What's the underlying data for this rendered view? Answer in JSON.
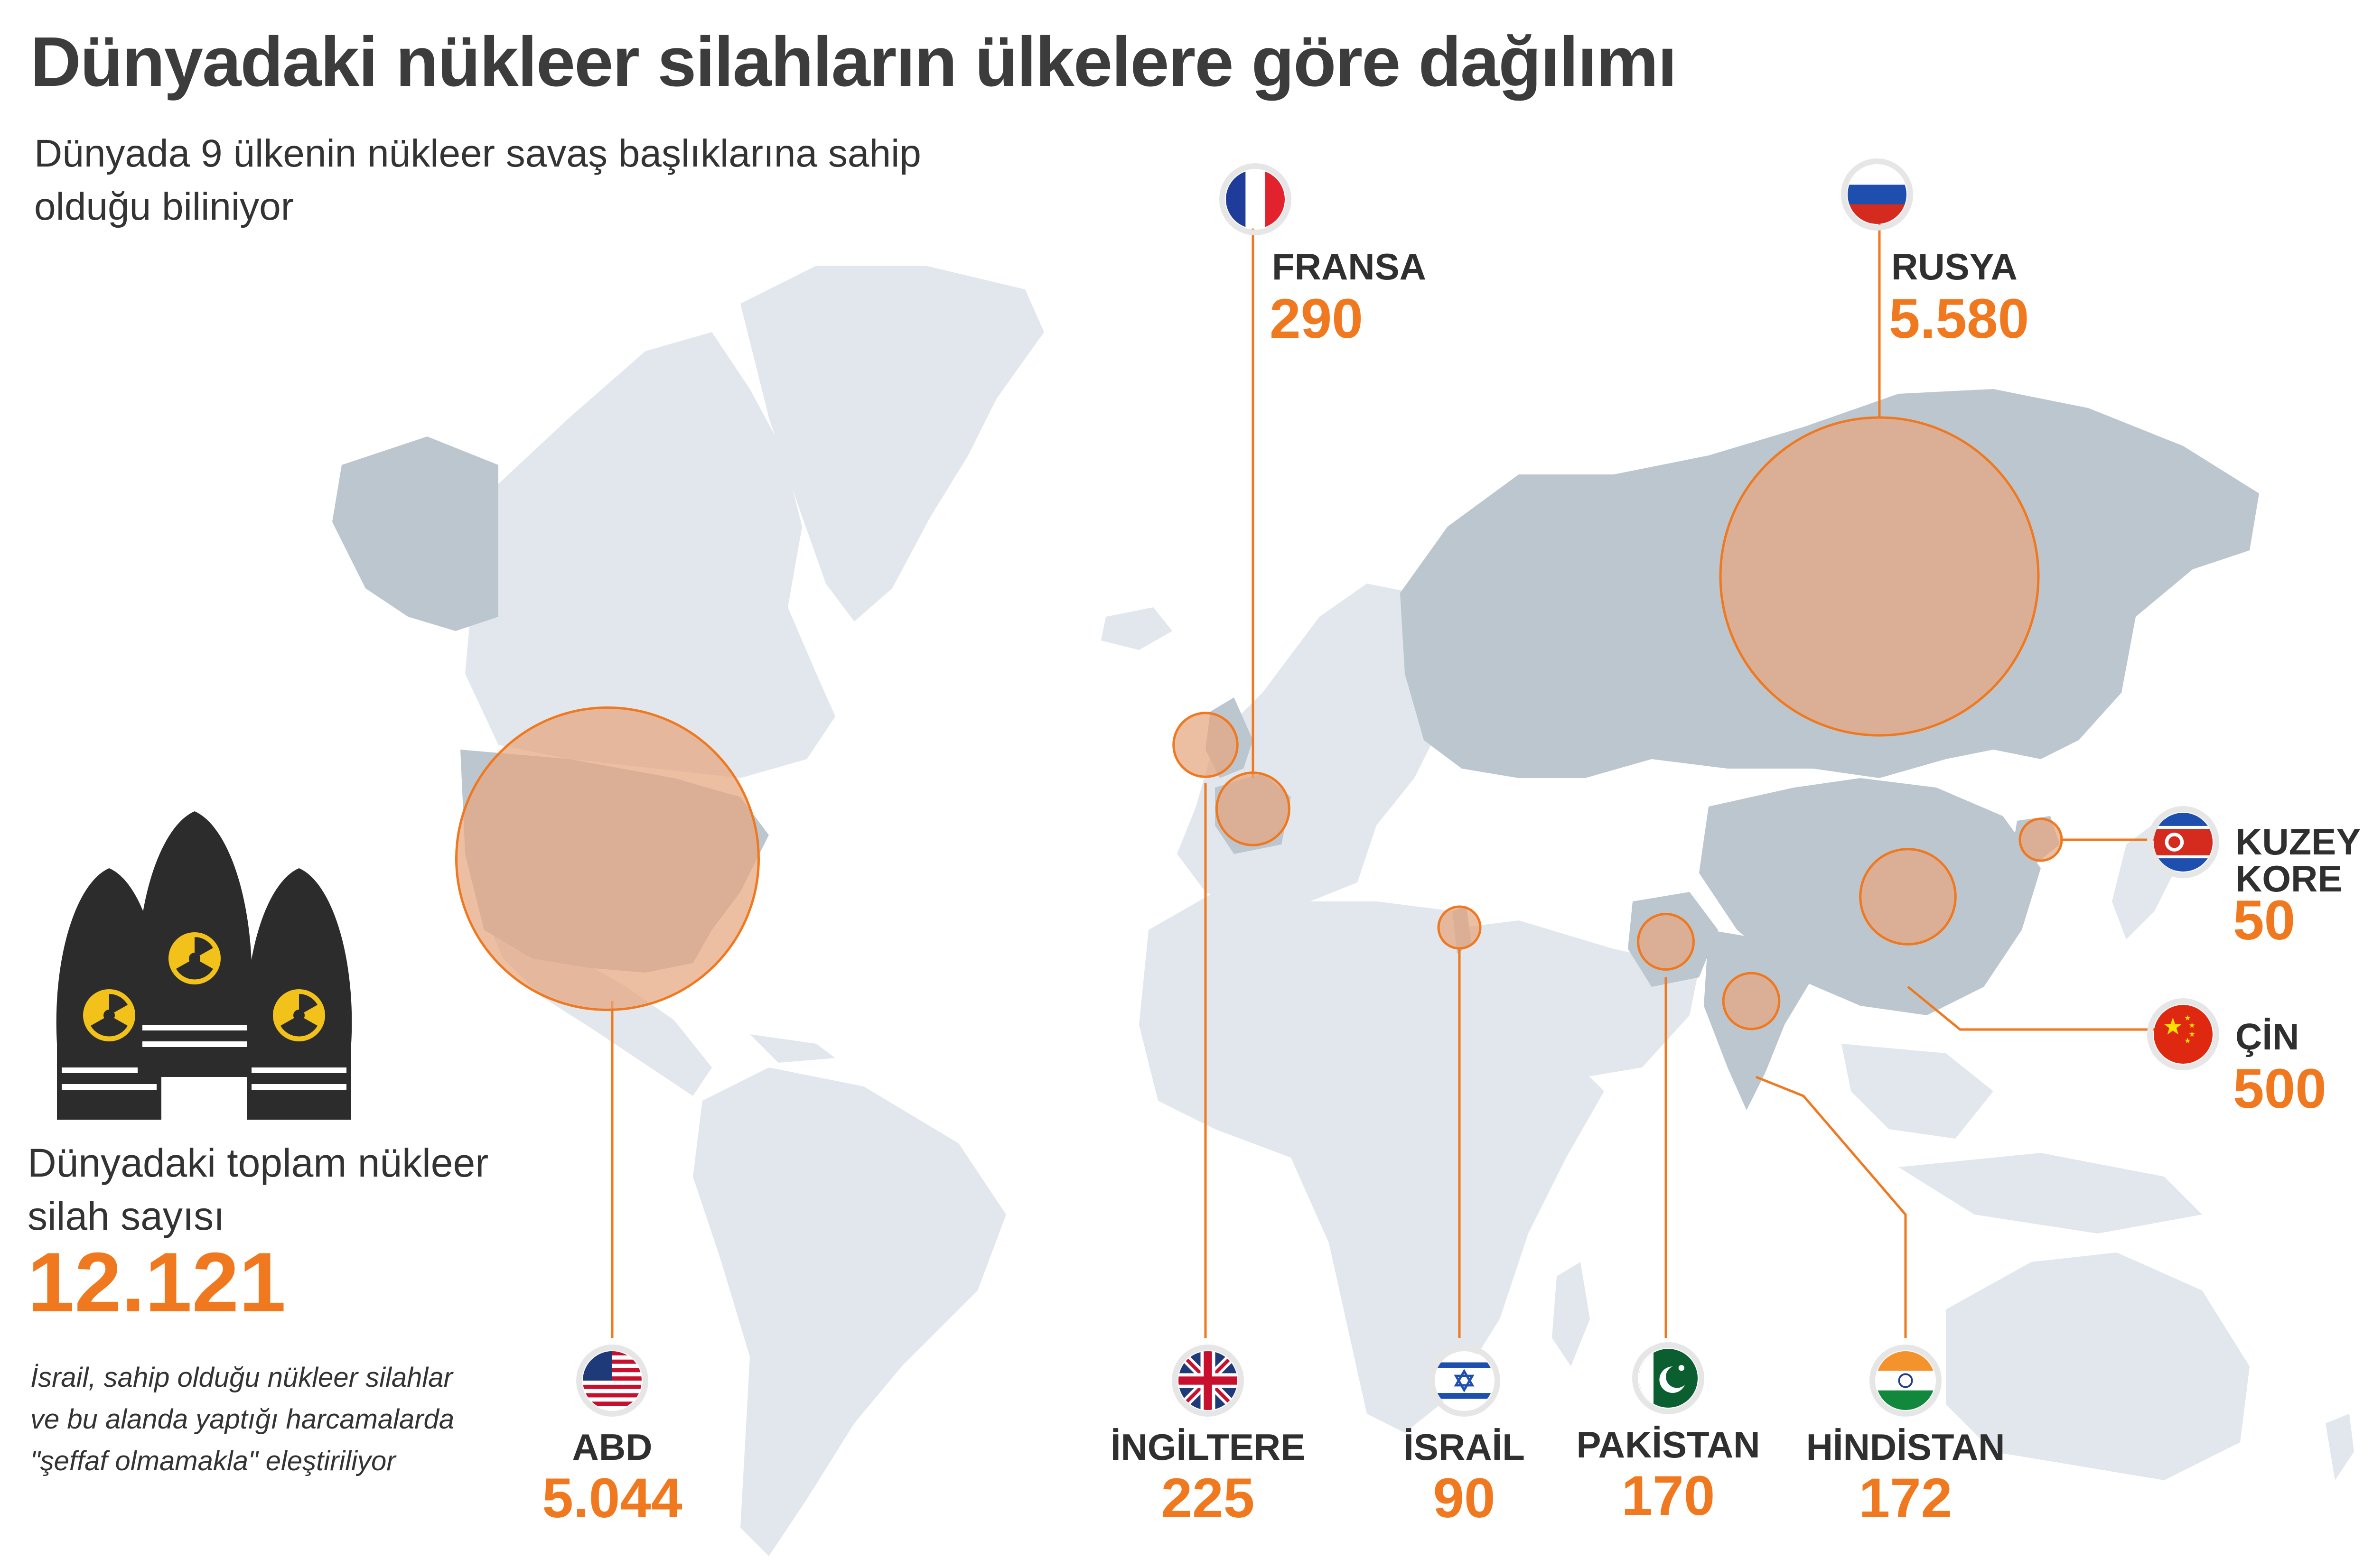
{
  "title": "Dünyadaki nükleer silahların ülkelere göre dağılımı",
  "subtitle": "Dünyada 9 ülkenin nükleer savaş başlıklarına sahip olduğu biliniyor",
  "total": {
    "label": "Dünyadaki toplam nükleer silah sayısı",
    "value": "12.121"
  },
  "note": "İsrail, sahip olduğu nükleer silahlar ve bu alanda yaptığı harcamalarda \"şeffaf olmamakla\" eleştiriliyor",
  "colors": {
    "accent": "#f0781e",
    "bubble": "#e6a67e",
    "map_light": "#e1e7ec",
    "map_dark": "#bcc6cf"
  },
  "countries": [
    {
      "name": "ABD",
      "value": "5.044",
      "flag": "usa-flag-icon"
    },
    {
      "name": "İNGİLTERE",
      "value": "225",
      "flag": "uk-flag-icon"
    },
    {
      "name": "İSRAİL",
      "value": "90",
      "flag": "israel-flag-icon"
    },
    {
      "name": "PAKİSTAN",
      "value": "170",
      "flag": "pakistan-flag-icon"
    },
    {
      "name": "HİNDİSTAN",
      "value": "172",
      "flag": "india-flag-icon"
    },
    {
      "name": "FRANSA",
      "value": "290",
      "flag": "france-flag-icon"
    },
    {
      "name": "RUSYA",
      "value": "5.580",
      "flag": "russia-flag-icon"
    },
    {
      "name": "KUZEY KORE",
      "value": "50",
      "flag": "north-korea-flag-icon"
    },
    {
      "name": "ÇİN",
      "value": "500",
      "flag": "china-flag-icon"
    }
  ],
  "chart_data": {
    "type": "bubble-map",
    "categories": [
      "ABD",
      "İNGİLTERE",
      "İSRAİL",
      "PAKİSTAN",
      "HİNDİSTAN",
      "FRANSA",
      "RUSYA",
      "KUZEY KORE",
      "ÇİN"
    ],
    "values": [
      5044,
      225,
      90,
      170,
      172,
      290,
      5580,
      50,
      500
    ],
    "total": 12121
  }
}
